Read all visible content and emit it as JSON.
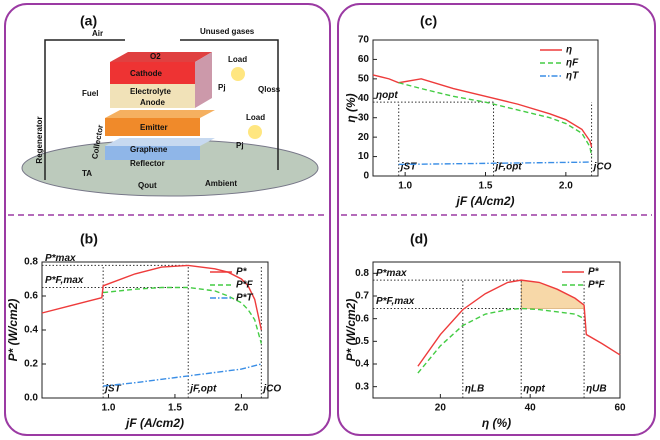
{
  "diagram": {
    "label": "(a)",
    "labels": [
      "Air",
      "Unused gases",
      "O2",
      "Cathode",
      "Load",
      "Qloss",
      "Fuel",
      "Electrolyte",
      "Anode",
      "Emitter",
      "Load",
      "Regenerator",
      "Collector",
      "Graphene",
      "Reflector",
      "TA",
      "Qout",
      "Ambient",
      "Pj",
      "Pj"
    ]
  },
  "chart_data": [
    {
      "type": "line",
      "label": "(b)",
      "x_label": "jF (A/cm2)",
      "y_label": "P* (W/cm2)",
      "x": [
        0.5,
        0.7,
        0.85,
        0.95,
        0.96,
        1.2,
        1.4,
        1.6,
        1.8,
        1.9,
        2.0,
        2.05,
        2.1,
        2.15
      ],
      "xlim": [
        0.5,
        2.2
      ],
      "xticks": [
        {
          "value": 1.0,
          "label": "1.0"
        },
        1.5,
        {
          "value": 2.0,
          "label": "2.0"
        }
      ],
      "ylim": [
        0,
        0.8
      ],
      "yticks": [
        {
          "value": 0,
          "label": "0.0"
        },
        0.2,
        0.4,
        0.6,
        0.8
      ],
      "legend": "upper right",
      "series": [
        {
          "name": "P*",
          "color": "#ee3b3b",
          "dash": "solid",
          "values": [
            0.5,
            0.54,
            0.57,
            0.59,
            0.66,
            0.73,
            0.77,
            0.78,
            0.76,
            0.74,
            0.7,
            0.66,
            0.58,
            0.4
          ]
        },
        {
          "name": "P*F",
          "color": "#44cc44",
          "dash": "dashed",
          "values": [
            null,
            null,
            null,
            null,
            0.62,
            0.64,
            0.65,
            0.65,
            0.63,
            0.6,
            0.56,
            0.52,
            0.46,
            0.32
          ]
        },
        {
          "name": "P*T",
          "color": "#3a8ee6",
          "dash": "dashdot",
          "values": [
            null,
            null,
            null,
            null,
            0.07,
            0.09,
            0.11,
            0.13,
            0.15,
            0.16,
            0.17,
            0.18,
            0.19,
            0.2
          ]
        }
      ],
      "hlines": [
        {
          "label": "P*max",
          "y": 0.78
        },
        {
          "label": "P*F,max",
          "y": 0.65
        }
      ],
      "vlines": [
        {
          "label": "jST",
          "x": 0.96
        },
        {
          "label": "jF,opt",
          "x": 1.6
        },
        {
          "label": "jCO",
          "x": 2.15
        }
      ]
    },
    {
      "type": "line",
      "label": "(c)",
      "x_label": "jF (A/cm2)",
      "y_label": "η (%)",
      "x": [
        0.8,
        0.9,
        0.96,
        1.1,
        1.3,
        1.5,
        1.7,
        1.9,
        2.0,
        2.1,
        2.15,
        2.16
      ],
      "xlim": [
        0.8,
        2.2
      ],
      "xticks": [
        {
          "value": 1.0,
          "label": "1.0"
        },
        1.5,
        {
          "value": 2.0,
          "label": "2.0"
        }
      ],
      "ylim": [
        0,
        70
      ],
      "yticks": [
        0,
        10,
        20,
        30,
        40,
        50,
        60,
        70
      ],
      "legend": "upper right",
      "series": [
        {
          "name": "η",
          "color": "#ee3b3b",
          "dash": "solid",
          "values": [
            52,
            50,
            48,
            50,
            45,
            41,
            37,
            32,
            29,
            24,
            18,
            15
          ]
        },
        {
          "name": "ηF",
          "color": "#44cc44",
          "dash": "dashed",
          "values": [
            null,
            null,
            48,
            45,
            41,
            38,
            34,
            30,
            27,
            22,
            15,
            10
          ]
        },
        {
          "name": "ηT",
          "color": "#3a8ee6",
          "dash": "dashdot",
          "values": [
            null,
            null,
            6,
            6.1,
            6.3,
            6.5,
            6.7,
            6.9,
            7,
            7.1,
            7.2,
            null
          ]
        }
      ],
      "hlines": [
        {
          "label": "ηopt",
          "y": 38
        }
      ],
      "vlines": [
        {
          "label": "jST",
          "x": 0.96
        },
        {
          "label": "jF,opt",
          "x": 1.55
        },
        {
          "label": "jCO",
          "x": 2.16
        }
      ]
    },
    {
      "type": "line",
      "label": "(d)",
      "x_label": "η (%)",
      "y_label": "P* (W/cm2)",
      "x": [
        15,
        20,
        25,
        30,
        35,
        38,
        42,
        46,
        50,
        52,
        52.5,
        56,
        60
      ],
      "xlim": [
        5,
        60
      ],
      "xticks": [
        20,
        40,
        60
      ],
      "ylim": [
        0.25,
        0.85
      ],
      "yticks": [
        0.3,
        0.4,
        0.5,
        0.6,
        0.7,
        0.8
      ],
      "legend": "upper right",
      "series": [
        {
          "name": "P*",
          "color": "#ee3b3b",
          "dash": "solid",
          "values": [
            0.39,
            0.53,
            0.64,
            0.71,
            0.76,
            0.77,
            0.76,
            0.73,
            0.69,
            0.66,
            0.53,
            0.49,
            0.44
          ]
        },
        {
          "name": "P*F",
          "color": "#44cc44",
          "dash": "dashed",
          "values": [
            0.36,
            0.48,
            0.57,
            0.62,
            0.64,
            0.645,
            0.64,
            0.63,
            0.62,
            0.6,
            null,
            null,
            null
          ]
        }
      ],
      "hlines": [
        {
          "label": "P*max",
          "y": 0.77
        },
        {
          "label": "P*F,max",
          "y": 0.645
        }
      ],
      "vlines": [
        {
          "label": "ηLB",
          "x": 25
        },
        {
          "label": "ηopt",
          "x": 38
        },
        {
          "label": "ηUB",
          "x": 52
        }
      ]
    }
  ]
}
